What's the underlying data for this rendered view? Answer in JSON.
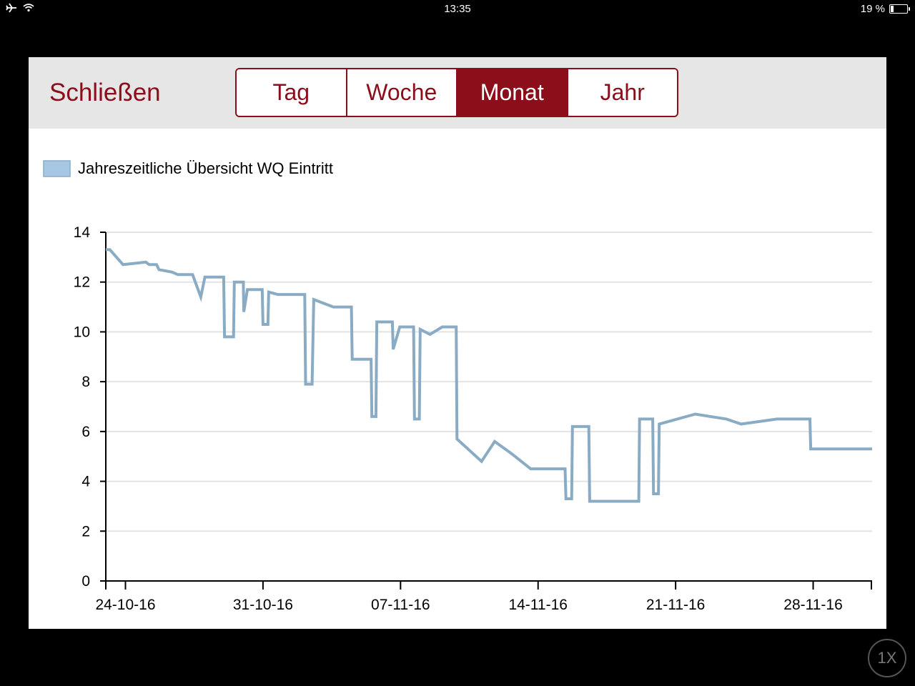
{
  "status": {
    "time": "13:35",
    "battery": "19 %",
    "battery_level": 0.19
  },
  "toolbar": {
    "close_label": "Schließen",
    "tabs": [
      {
        "label": "Tag",
        "active": false
      },
      {
        "label": "Woche",
        "active": false
      },
      {
        "label": "Monat",
        "active": true
      },
      {
        "label": "Jahr",
        "active": false
      }
    ]
  },
  "playback_label": "1X",
  "colors": {
    "accent": "#8b0e1a",
    "series_fill": "#a6c8e4",
    "series_line": "#8aabc4"
  },
  "chart_data": {
    "type": "line",
    "legend": "Jahreszeitliche Übersicht WQ Eintritt",
    "legend_position": "top-left",
    "grid": true,
    "ylim": [
      0,
      14
    ],
    "yticks": [
      "0",
      "2",
      "4",
      "6",
      "8",
      "10",
      "12",
      "14"
    ],
    "xlim": [
      "2016-10-23 00:00",
      "2016-12-01 00:00"
    ],
    "xticks": [
      {
        "date": "2016-10-24",
        "label": "24-10-16"
      },
      {
        "date": "2016-10-31",
        "label": "31-10-16"
      },
      {
        "date": "2016-11-07",
        "label": "07-11-16"
      },
      {
        "date": "2016-11-14",
        "label": "14-11-16"
      },
      {
        "date": "2016-11-21",
        "label": "21-11-16"
      },
      {
        "date": "2016-11-28",
        "label": "28-11-16"
      }
    ],
    "series": [
      {
        "name": "Jahreszeitliche Übersicht WQ Eintritt",
        "points": [
          [
            "2016-10-23 00:00",
            13.3
          ],
          [
            "2016-10-23 05:00",
            13.3
          ],
          [
            "2016-10-23 21:00",
            12.7
          ],
          [
            "2016-10-25 01:00",
            12.8
          ],
          [
            "2016-10-25 05:00",
            12.7
          ],
          [
            "2016-10-25 14:00",
            12.7
          ],
          [
            "2016-10-25 17:00",
            12.5
          ],
          [
            "2016-10-26 09:00",
            12.4
          ],
          [
            "2016-10-26 16:00",
            12.3
          ],
          [
            "2016-10-27 10:00",
            12.3
          ],
          [
            "2016-10-27 20:00",
            11.4
          ],
          [
            "2016-10-28 01:00",
            12.2
          ],
          [
            "2016-10-29 00:00",
            12.2
          ],
          [
            "2016-10-29 01:00",
            9.8
          ],
          [
            "2016-10-29 12:00",
            9.8
          ],
          [
            "2016-10-29 13:00",
            12.0
          ],
          [
            "2016-10-30 00:00",
            12.0
          ],
          [
            "2016-10-30 00:30",
            10.8
          ],
          [
            "2016-10-30 05:00",
            11.7
          ],
          [
            "2016-10-30 23:00",
            11.7
          ],
          [
            "2016-10-31 00:00",
            10.3
          ],
          [
            "2016-10-31 06:00",
            10.3
          ],
          [
            "2016-10-31 07:00",
            11.6
          ],
          [
            "2016-10-31 18:00",
            11.5
          ],
          [
            "2016-11-02 03:00",
            11.5
          ],
          [
            "2016-11-02 04:00",
            7.9
          ],
          [
            "2016-11-02 12:00",
            7.9
          ],
          [
            "2016-11-02 14:00",
            11.3
          ],
          [
            "2016-11-03 14:00",
            11.0
          ],
          [
            "2016-11-04 12:00",
            11.0
          ],
          [
            "2016-11-04 13:00",
            8.9
          ],
          [
            "2016-11-05 12:00",
            8.9
          ],
          [
            "2016-11-05 13:00",
            6.6
          ],
          [
            "2016-11-05 18:00",
            6.6
          ],
          [
            "2016-11-05 19:00",
            10.4
          ],
          [
            "2016-11-06 14:00",
            10.4
          ],
          [
            "2016-11-06 15:00",
            9.3
          ],
          [
            "2016-11-06 23:00",
            10.2
          ],
          [
            "2016-11-07 16:00",
            10.2
          ],
          [
            "2016-11-07 17:00",
            6.5
          ],
          [
            "2016-11-07 23:00",
            6.5
          ],
          [
            "2016-11-08 00:00",
            10.1
          ],
          [
            "2016-11-08 12:00",
            9.9
          ],
          [
            "2016-11-09 03:00",
            10.2
          ],
          [
            "2016-11-09 20:00",
            10.2
          ],
          [
            "2016-11-09 21:00",
            5.7
          ],
          [
            "2016-11-11 03:00",
            4.8
          ],
          [
            "2016-11-11 19:00",
            5.6
          ],
          [
            "2016-11-12 16:00",
            5.1
          ],
          [
            "2016-11-13 15:00",
            4.5
          ],
          [
            "2016-11-14 12:00",
            4.5
          ],
          [
            "2016-11-15 09:00",
            4.5
          ],
          [
            "2016-11-15 10:00",
            3.3
          ],
          [
            "2016-11-15 17:00",
            3.3
          ],
          [
            "2016-11-15 18:00",
            6.2
          ],
          [
            "2016-11-16 14:00",
            6.2
          ],
          [
            "2016-11-16 15:00",
            3.2
          ],
          [
            "2016-11-19 03:00",
            3.2
          ],
          [
            "2016-11-19 04:00",
            6.5
          ],
          [
            "2016-11-19 20:00",
            6.5
          ],
          [
            "2016-11-19 21:00",
            3.5
          ],
          [
            "2016-11-20 03:00",
            3.5
          ],
          [
            "2016-11-20 04:00",
            6.3
          ],
          [
            "2016-11-22 00:00",
            6.7
          ],
          [
            "2016-11-23 14:00",
            6.5
          ],
          [
            "2016-11-24 08:00",
            6.3
          ],
          [
            "2016-11-26 04:00",
            6.5
          ],
          [
            "2016-11-27 20:00",
            6.5
          ],
          [
            "2016-11-27 21:00",
            5.3
          ],
          [
            "2016-12-01 00:00",
            5.3
          ]
        ]
      }
    ]
  }
}
